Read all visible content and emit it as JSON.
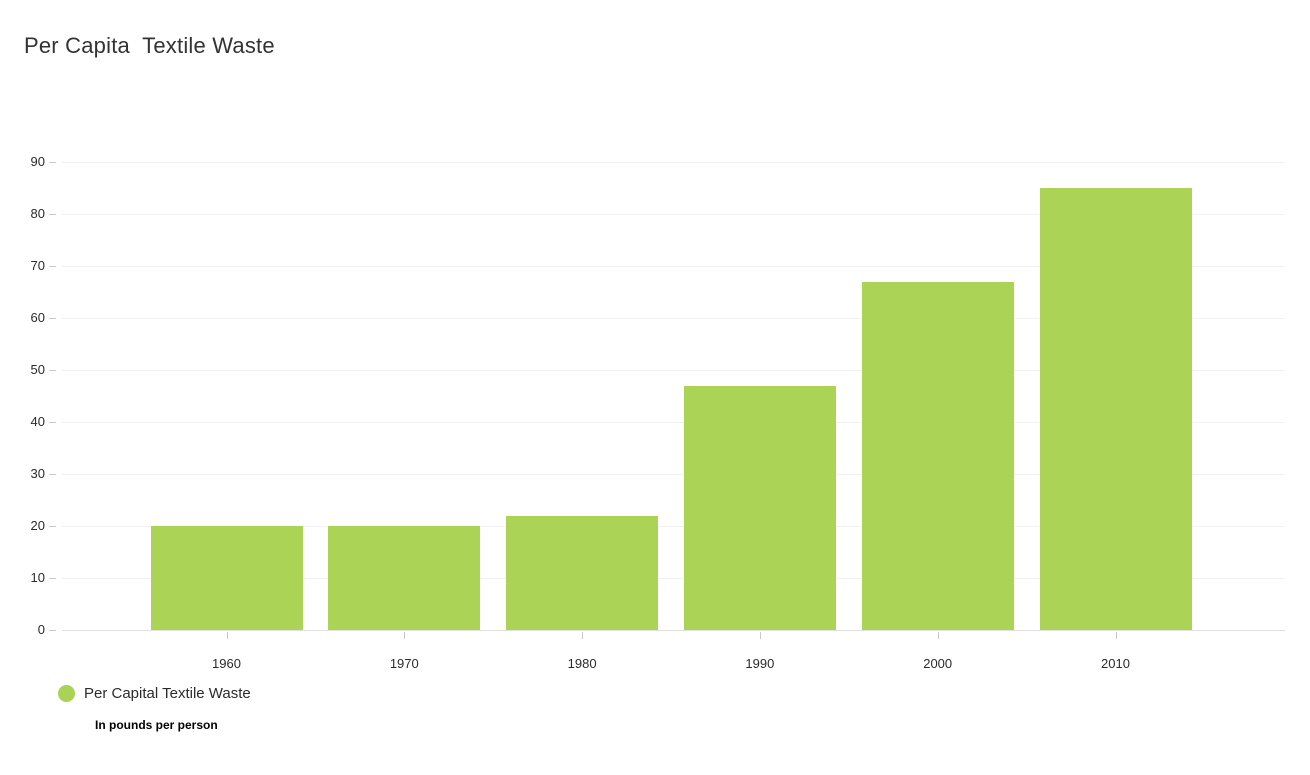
{
  "title": "Per Capita  Textile Waste",
  "legend": {
    "label": "Per Capital Textile Waste",
    "sublabel": "In pounds per person",
    "swatch_color": "#a8d355"
  },
  "colors": {
    "bar": "#abd355",
    "grid": "#f2f2f2",
    "axis_line": "#e0e0e0",
    "tick": "#c9c9c9",
    "text": "#2b2b2b"
  },
  "chart_data": {
    "type": "bar",
    "categories": [
      "1960",
      "1970",
      "1980",
      "1990",
      "2000",
      "2010"
    ],
    "values": [
      20,
      20,
      22,
      47,
      67,
      85
    ],
    "series": [
      {
        "name": "Per Capital Textile Waste",
        "values": [
          20,
          20,
          22,
          47,
          67,
          85
        ]
      }
    ],
    "title": "Per Capita  Textile Waste",
    "xlabel": "",
    "ylabel": "",
    "units": "In pounds per person",
    "ylim": [
      0,
      90
    ],
    "ytick_step": 10,
    "yticks": [
      0,
      10,
      20,
      30,
      40,
      50,
      60,
      70,
      80,
      90
    ],
    "grid": "horizontal",
    "legend_position": "bottom-left",
    "bar_color": "#abd355"
  }
}
